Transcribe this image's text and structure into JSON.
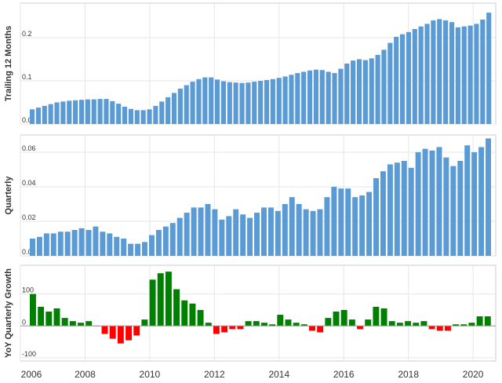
{
  "colors": {
    "bar_blue": "#5b9bd5",
    "bar_green": "#008000",
    "bar_red": "#ff0000",
    "grid": "#e6e6e6",
    "axis": "#cccccc"
  },
  "chart_data": [
    {
      "type": "bar",
      "ylabel": "Trailing 12 Months",
      "ylim": [
        0.0,
        0.28
      ],
      "yticks": [
        {
          "value": 0.0,
          "label": "0.0"
        },
        {
          "value": 0.1,
          "label": "0.1"
        },
        {
          "value": 0.2,
          "label": "0.2"
        }
      ],
      "grid": true,
      "values": [
        0.034,
        0.038,
        0.042,
        0.046,
        0.05,
        0.052,
        0.054,
        0.055,
        0.056,
        0.057,
        0.057,
        0.058,
        0.058,
        0.053,
        0.047,
        0.04,
        0.035,
        0.032,
        0.032,
        0.034,
        0.042,
        0.052,
        0.062,
        0.072,
        0.082,
        0.09,
        0.098,
        0.104,
        0.108,
        0.108,
        0.103,
        0.099,
        0.097,
        0.096,
        0.095,
        0.096,
        0.098,
        0.1,
        0.102,
        0.104,
        0.107,
        0.11,
        0.114,
        0.118,
        0.121,
        0.124,
        0.126,
        0.125,
        0.121,
        0.118,
        0.128,
        0.14,
        0.147,
        0.15,
        0.148,
        0.152,
        0.16,
        0.172,
        0.188,
        0.202,
        0.208,
        0.213,
        0.22,
        0.226,
        0.232,
        0.24,
        0.243,
        0.24,
        0.236,
        0.224,
        0.226,
        0.228,
        0.232,
        0.242,
        0.258
      ]
    },
    {
      "type": "bar",
      "ylabel": "Quarterly",
      "ylim": [
        0.0,
        0.07
      ],
      "yticks": [
        {
          "value": 0.0,
          "label": "0.00"
        },
        {
          "value": 0.02,
          "label": "0.02"
        },
        {
          "value": 0.04,
          "label": "0.04"
        },
        {
          "value": 0.06,
          "label": "0.06"
        }
      ],
      "grid": true,
      "values": [
        0.01,
        0.011,
        0.013,
        0.013,
        0.014,
        0.014,
        0.015,
        0.016,
        0.015,
        0.017,
        0.014,
        0.013,
        0.011,
        0.01,
        0.007,
        0.007,
        0.008,
        0.012,
        0.015,
        0.017,
        0.019,
        0.022,
        0.025,
        0.028,
        0.028,
        0.03,
        0.027,
        0.021,
        0.023,
        0.027,
        0.024,
        0.022,
        0.025,
        0.028,
        0.028,
        0.026,
        0.03,
        0.034,
        0.03,
        0.027,
        0.026,
        0.027,
        0.034,
        0.04,
        0.039,
        0.039,
        0.034,
        0.035,
        0.037,
        0.045,
        0.049,
        0.053,
        0.054,
        0.055,
        0.051,
        0.06,
        0.062,
        0.061,
        0.063,
        0.057,
        0.052,
        0.055,
        0.064,
        0.06,
        0.063,
        0.068
      ]
    },
    {
      "type": "bar",
      "ylabel": "YoY Quarterly Growth",
      "ylim": [
        -110,
        190
      ],
      "yticks": [
        {
          "value": -100,
          "label": "-100"
        },
        {
          "value": 0,
          "label": "0"
        },
        {
          "value": 100,
          "label": "100"
        }
      ],
      "grid": true,
      "values": [
        100,
        60,
        45,
        55,
        25,
        15,
        10,
        15,
        0,
        -25,
        -40,
        -55,
        -45,
        -30,
        20,
        145,
        165,
        170,
        115,
        80,
        70,
        50,
        10,
        -25,
        -20,
        -10,
        -10,
        15,
        15,
        10,
        5,
        35,
        20,
        10,
        5,
        -15,
        -20,
        25,
        45,
        50,
        20,
        -10,
        20,
        60,
        55,
        15,
        10,
        15,
        10,
        15,
        -10,
        -15,
        -15,
        5,
        5,
        10,
        30,
        30
      ]
    }
  ],
  "x_axis": {
    "range": [
      2006,
      2020.7
    ],
    "ticks": [
      {
        "value": 2006,
        "label": "2006"
      },
      {
        "value": 2008,
        "label": "2008"
      },
      {
        "value": 2010,
        "label": "2010"
      },
      {
        "value": 2012,
        "label": "2012"
      },
      {
        "value": 2014,
        "label": "2014"
      },
      {
        "value": 2016,
        "label": "2016"
      },
      {
        "value": 2018,
        "label": "2018"
      },
      {
        "value": 2020,
        "label": "2020"
      }
    ]
  }
}
